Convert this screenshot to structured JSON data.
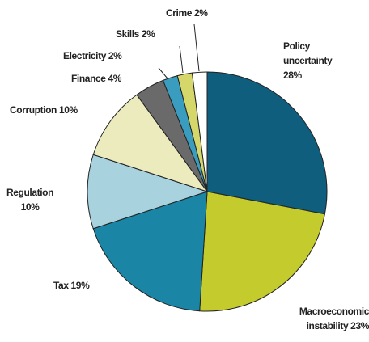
{
  "chart_data": {
    "type": "pie",
    "categories": [
      "Policy uncertainty",
      "Macroeconomic instability",
      "Tax",
      "Regulation",
      "Corruption",
      "Finance",
      "Electricity",
      "Skills",
      "Crime"
    ],
    "values": [
      28,
      23,
      19,
      10,
      10,
      4,
      2,
      2,
      2
    ],
    "value_labels": [
      "28%",
      "23%",
      "19%",
      "10%",
      "10%",
      "4%",
      "2%",
      "2%",
      "2%"
    ],
    "colors": [
      "#0f5e7e",
      "#c4cb2c",
      "#1b85a6",
      "#a8d2de",
      "#ecebbd",
      "#6a6a6a",
      "#3a9dbf",
      "#d5d76a",
      "#ffffff"
    ]
  }
}
